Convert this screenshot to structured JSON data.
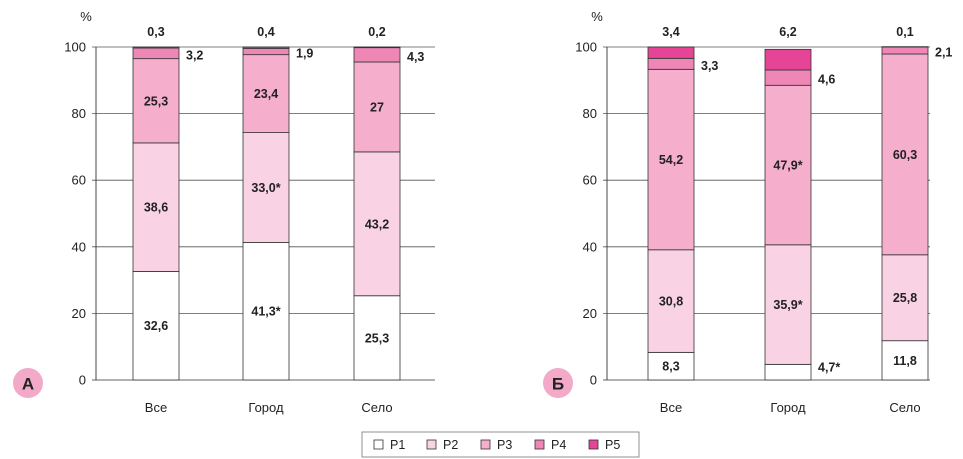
{
  "chart_data": [
    {
      "type": "bar",
      "panel_label": "А",
      "ylabel": "%",
      "ylim": [
        0,
        100
      ],
      "yticks": [
        "0",
        "20",
        "40",
        "60",
        "80",
        "100"
      ],
      "categories": [
        "Все",
        "Город",
        "Село"
      ],
      "series": [
        {
          "name": "P1",
          "values": [
            32.6,
            41.3,
            25.3
          ],
          "labels": [
            "32,6",
            "41,3*",
            "25,3"
          ]
        },
        {
          "name": "P2",
          "values": [
            38.6,
            33.0,
            43.2
          ],
          "labels": [
            "38,6",
            "33,0*",
            "43,2"
          ]
        },
        {
          "name": "P3",
          "values": [
            25.3,
            23.4,
            27.0
          ],
          "labels": [
            "25,3",
            "23,4",
            "27"
          ]
        },
        {
          "name": "P4",
          "values": [
            3.2,
            1.9,
            4.3
          ],
          "labels": [
            "3,2",
            "1,9",
            "4,3"
          ]
        },
        {
          "name": "P5",
          "values": [
            0.3,
            0.4,
            0.2
          ],
          "labels": [
            "0,3",
            "0,4",
            "0,2"
          ]
        }
      ]
    },
    {
      "type": "bar",
      "panel_label": "Б",
      "ylabel": "%",
      "ylim": [
        0,
        100
      ],
      "yticks": [
        "0",
        "20",
        "40",
        "60",
        "80",
        "100"
      ],
      "categories": [
        "Все",
        "Город",
        "Село"
      ],
      "series": [
        {
          "name": "P1",
          "values": [
            8.3,
            4.7,
            11.8
          ],
          "labels": [
            "8,3",
            "4,7*",
            "11,8"
          ]
        },
        {
          "name": "P2",
          "values": [
            30.8,
            35.9,
            25.8
          ],
          "labels": [
            "30,8",
            "35,9*",
            "25,8"
          ]
        },
        {
          "name": "P3",
          "values": [
            54.2,
            47.9,
            60.3
          ],
          "labels": [
            "54,2",
            "47,9*",
            "60,3"
          ]
        },
        {
          "name": "P4",
          "values": [
            3.3,
            4.6,
            2.1
          ],
          "labels": [
            "3,3",
            "4,6",
            "2,1"
          ]
        },
        {
          "name": "P5",
          "values": [
            3.4,
            6.2,
            0.1
          ],
          "labels": [
            "3,4",
            "6,2",
            "0,1"
          ]
        }
      ]
    }
  ],
  "legend": [
    "P1",
    "P2",
    "P3",
    "P4",
    "P5"
  ],
  "colors": {
    "P1": "#ffffff",
    "P2": "#f9d3e3",
    "P3": "#f5afcd",
    "P4": "#ee86b6",
    "P5": "#e64597",
    "badge": "#f3aac9"
  }
}
